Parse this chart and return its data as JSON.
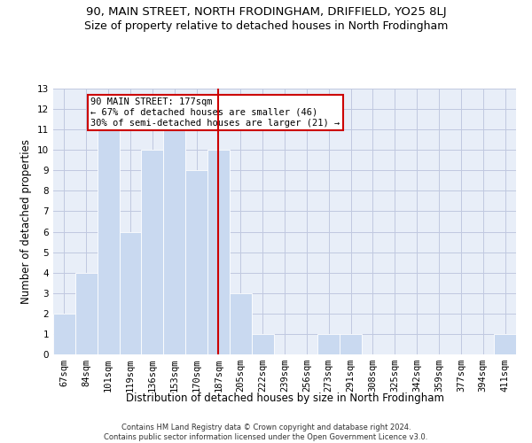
{
  "title": "90, MAIN STREET, NORTH FRODINGHAM, DRIFFIELD, YO25 8LJ",
  "subtitle": "Size of property relative to detached houses in North Frodingham",
  "xlabel": "Distribution of detached houses by size in North Frodingham",
  "ylabel": "Number of detached properties",
  "categories": [
    "67sqm",
    "84sqm",
    "101sqm",
    "119sqm",
    "136sqm",
    "153sqm",
    "170sqm",
    "187sqm",
    "205sqm",
    "222sqm",
    "239sqm",
    "256sqm",
    "273sqm",
    "291sqm",
    "308sqm",
    "325sqm",
    "342sqm",
    "359sqm",
    "377sqm",
    "394sqm",
    "411sqm"
  ],
  "values": [
    2,
    4,
    11,
    6,
    10,
    11,
    9,
    10,
    3,
    1,
    0,
    0,
    1,
    1,
    0,
    0,
    0,
    0,
    0,
    0,
    1
  ],
  "bar_color": "#c9d9f0",
  "bar_edge_color": "#ffffff",
  "grid_color": "#c0c8e0",
  "background_color": "#e8eef8",
  "vline_index": 7,
  "vline_color": "#cc0000",
  "annotation_text": "90 MAIN STREET: 177sqm\n← 67% of detached houses are smaller (46)\n30% of semi-detached houses are larger (21) →",
  "annotation_box_color": "#ffffff",
  "annotation_box_edge": "#cc0000",
  "ylim": [
    0,
    13
  ],
  "yticks": [
    0,
    1,
    2,
    3,
    4,
    5,
    6,
    7,
    8,
    9,
    10,
    11,
    12,
    13
  ],
  "footer1": "Contains HM Land Registry data © Crown copyright and database right 2024.",
  "footer2": "Contains public sector information licensed under the Open Government Licence v3.0.",
  "title_fontsize": 9.5,
  "subtitle_fontsize": 9,
  "tick_fontsize": 7.5,
  "ylabel_fontsize": 8.5,
  "xlabel_fontsize": 8.5,
  "annotation_fontsize": 7.5,
  "footer_fontsize": 6
}
